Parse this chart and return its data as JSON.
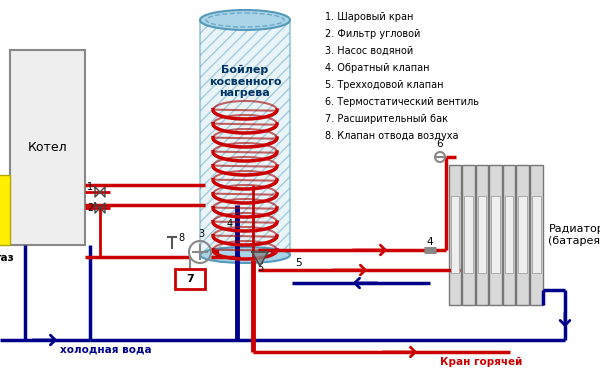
{
  "bg_color": "#ffffff",
  "red": "#cc0000",
  "blue": "#00008B",
  "gray_fill": "#e8e8e8",
  "gray_edge": "#555555",
  "cyl_fill": "#cce8f0",
  "cyl_edge": "#5599bb",
  "legend_items": [
    "1. Шаровый кран",
    "2. Фильтр угловой",
    "3. Насос водяной",
    "4. Обратный клапан",
    "5. Трехходовой клапан",
    "6. Термостатический вентиль",
    "7. Расширительный бак",
    "8. Клапан отвода воздуха"
  ],
  "boiler_label": "Бойлер\nкосвенного\nнагрева",
  "kotel_label": "Котел",
  "gaz_label": "газ",
  "cold_water_label": "холодная вода",
  "hot_water_label": "Кран горячей\nводы",
  "radiator_label": "Радиатор\n(батарея)"
}
